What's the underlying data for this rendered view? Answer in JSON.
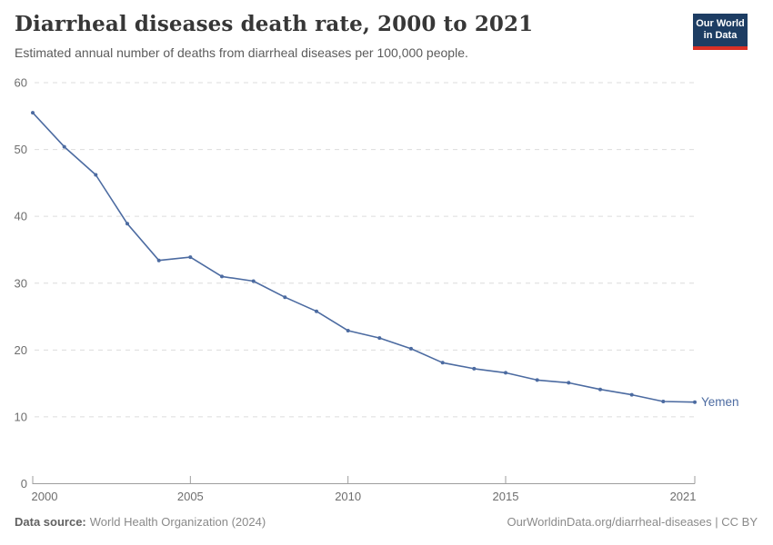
{
  "header": {
    "title": "Diarrheal diseases death rate, 2000 to 2021",
    "subtitle": "Estimated annual number of deaths from diarrheal diseases per 100,000 people.",
    "logo_line1": "Our World",
    "logo_line2": "in Data"
  },
  "footer": {
    "data_source_label": "Data source:",
    "data_source_value": "World Health Organization (2024)",
    "credit": "OurWorldinData.org/diarrheal-diseases | CC BY"
  },
  "colors": {
    "accent_line": "#4c6ba1",
    "logo_bg": "#1d3d63",
    "logo_accent": "#d93025",
    "grid": "#dcdcdc",
    "axis": "#9e9e9e",
    "muted_text": "#6e6e6e"
  },
  "chart_data": {
    "type": "line",
    "title": "Diarrheal diseases death rate, 2000 to 2021",
    "subtitle": "Estimated annual number of deaths from diarrheal diseases per 100,000 people.",
    "x": [
      2000,
      2001,
      2002,
      2003,
      2004,
      2005,
      2006,
      2007,
      2008,
      2009,
      2010,
      2011,
      2012,
      2013,
      2014,
      2015,
      2016,
      2017,
      2018,
      2019,
      2020,
      2021
    ],
    "series": [
      {
        "name": "Yemen",
        "values": [
          55.5,
          50.4,
          46.2,
          38.9,
          33.4,
          33.9,
          31.0,
          30.3,
          27.9,
          25.8,
          22.9,
          21.8,
          20.2,
          18.1,
          17.2,
          16.6,
          15.5,
          15.1,
          14.1,
          13.3,
          12.3,
          12.2
        ]
      }
    ],
    "xlim": [
      2000,
      2021
    ],
    "ylim": [
      0,
      60
    ],
    "x_ticks": [
      2000,
      2005,
      2010,
      2015,
      2021
    ],
    "y_ticks": [
      0,
      10,
      20,
      30,
      40,
      50,
      60
    ],
    "grid": "horizontal-dashed",
    "legend_position": "end-of-line",
    "markers": true,
    "xlabel": "",
    "ylabel": ""
  }
}
